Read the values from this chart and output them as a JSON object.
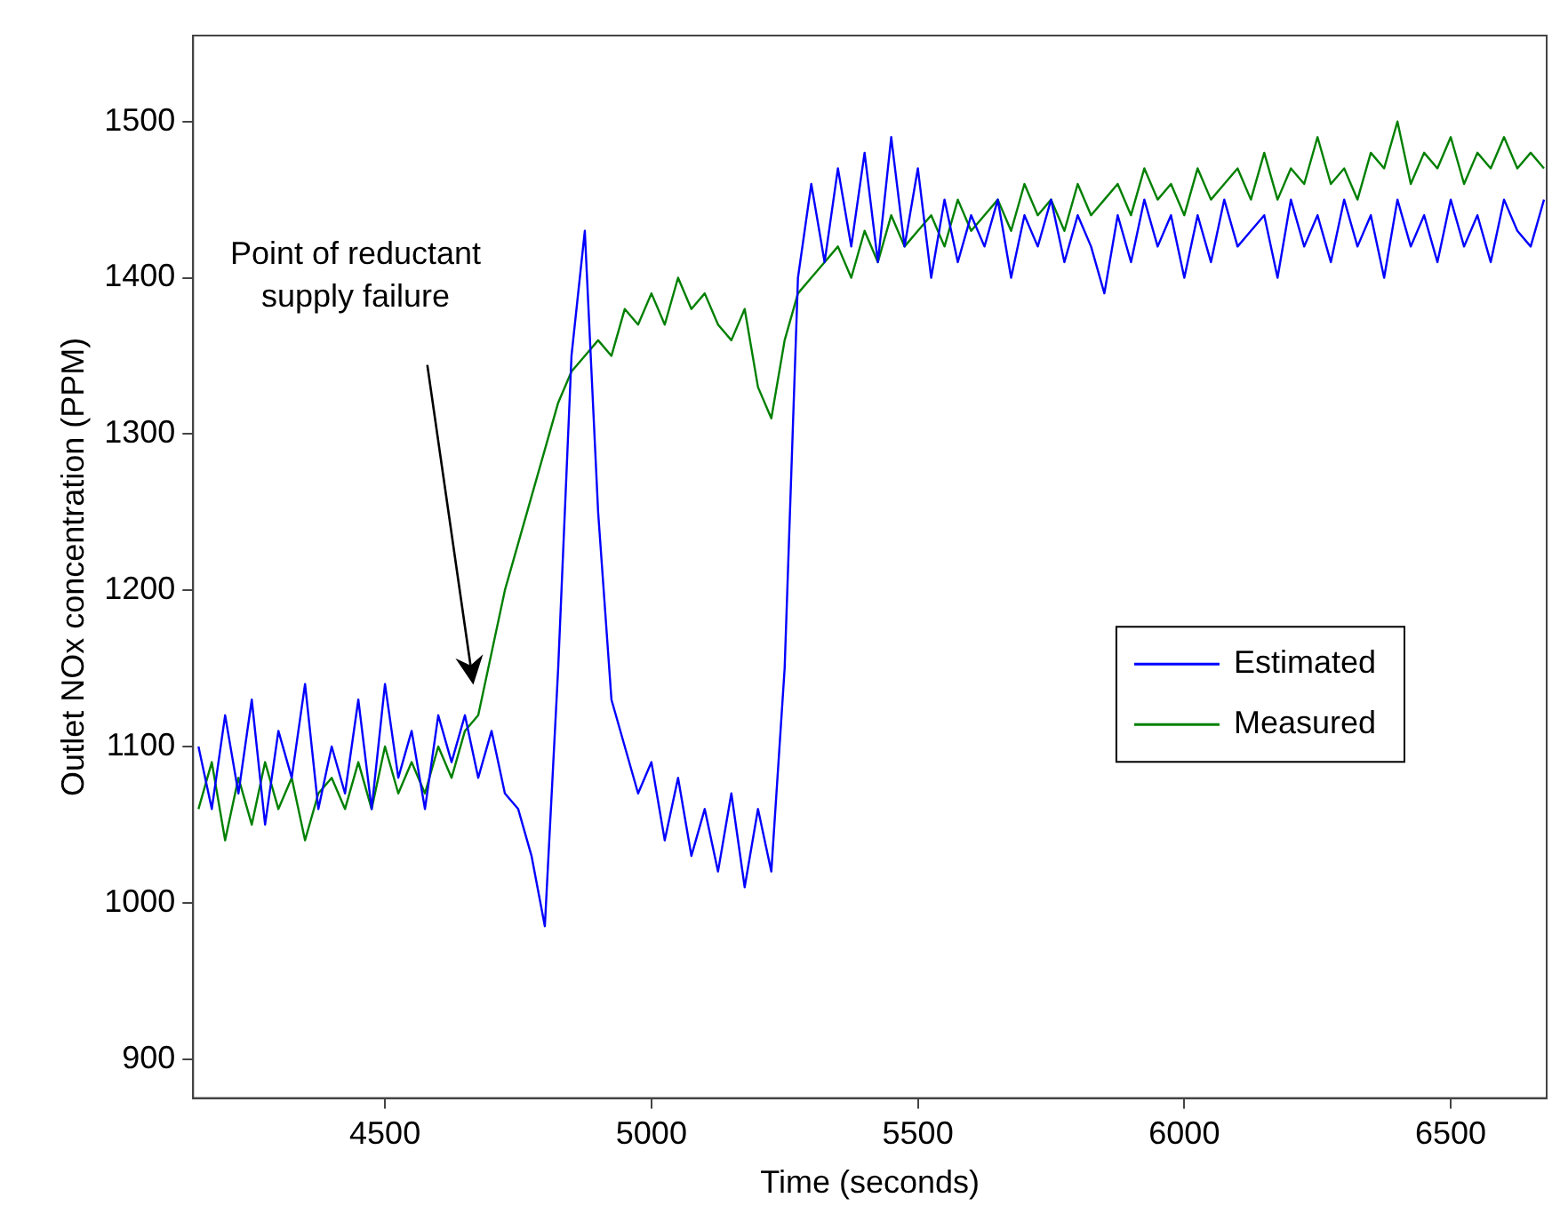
{
  "chart_data": {
    "type": "line",
    "xlabel": "Time (seconds)",
    "ylabel": "Outlet NOx concentration (PPM)",
    "x": [
      4150,
      4175,
      4200,
      4225,
      4250,
      4275,
      4300,
      4325,
      4350,
      4375,
      4400,
      4425,
      4450,
      4475,
      4500,
      4525,
      4550,
      4575,
      4600,
      4625,
      4650,
      4675,
      4700,
      4725,
      4750,
      4775,
      4800,
      4825,
      4850,
      4875,
      4900,
      4925,
      4950,
      4975,
      5000,
      5025,
      5050,
      5075,
      5100,
      5125,
      5150,
      5175,
      5200,
      5225,
      5250,
      5275,
      5300,
      5325,
      5350,
      5375,
      5400,
      5425,
      5450,
      5475,
      5500,
      5525,
      5550,
      5575,
      5600,
      5625,
      5650,
      5675,
      5700,
      5725,
      5750,
      5775,
      5800,
      5825,
      5850,
      5875,
      5900,
      5925,
      5950,
      5975,
      6000,
      6025,
      6050,
      6075,
      6100,
      6125,
      6150,
      6175,
      6200,
      6225,
      6250,
      6275,
      6300,
      6325,
      6350,
      6375,
      6400,
      6425,
      6450,
      6475,
      6500,
      6525,
      6550,
      6575,
      6600,
      6625,
      6650,
      6675
    ],
    "series": [
      {
        "name": "Estimated",
        "color": "#0000ff",
        "values": [
          1100,
          1060,
          1120,
          1070,
          1130,
          1050,
          1110,
          1080,
          1140,
          1060,
          1100,
          1070,
          1130,
          1060,
          1140,
          1080,
          1110,
          1060,
          1120,
          1090,
          1120,
          1080,
          1110,
          1070,
          1060,
          1030,
          985,
          1150,
          1350,
          1430,
          1250,
          1130,
          1100,
          1070,
          1090,
          1040,
          1080,
          1030,
          1060,
          1020,
          1070,
          1010,
          1060,
          1020,
          1150,
          1400,
          1460,
          1410,
          1470,
          1420,
          1480,
          1410,
          1490,
          1420,
          1470,
          1400,
          1450,
          1410,
          1440,
          1420,
          1450,
          1400,
          1440,
          1420,
          1450,
          1410,
          1440,
          1420,
          1390,
          1440,
          1410,
          1450,
          1420,
          1440,
          1400,
          1440,
          1410,
          1450,
          1420,
          1430,
          1440,
          1400,
          1450,
          1420,
          1440,
          1410,
          1450,
          1420,
          1440,
          1400,
          1450,
          1420,
          1440,
          1410,
          1450,
          1420,
          1440,
          1410,
          1450,
          1430,
          1420,
          1450
        ]
      },
      {
        "name": "Measured",
        "color": "#008000",
        "values": [
          1060,
          1090,
          1040,
          1080,
          1050,
          1090,
          1060,
          1080,
          1040,
          1070,
          1080,
          1060,
          1090,
          1060,
          1100,
          1070,
          1090,
          1070,
          1100,
          1080,
          1110,
          1120,
          1160,
          1200,
          1230,
          1260,
          1290,
          1320,
          1340,
          1350,
          1360,
          1350,
          1380,
          1370,
          1390,
          1370,
          1400,
          1380,
          1390,
          1370,
          1360,
          1380,
          1330,
          1310,
          1360,
          1390,
          1400,
          1410,
          1420,
          1400,
          1430,
          1410,
          1440,
          1420,
          1430,
          1440,
          1420,
          1450,
          1430,
          1440,
          1450,
          1430,
          1460,
          1440,
          1450,
          1430,
          1460,
          1440,
          1450,
          1460,
          1440,
          1470,
          1450,
          1460,
          1440,
          1470,
          1450,
          1460,
          1470,
          1450,
          1480,
          1450,
          1470,
          1460,
          1490,
          1460,
          1470,
          1450,
          1480,
          1470,
          1500,
          1460,
          1480,
          1470,
          1490,
          1460,
          1480,
          1470,
          1490,
          1470,
          1480,
          1470
        ]
      }
    ],
    "xlim": [
      4140,
      6680
    ],
    "xticks": [
      4500,
      5000,
      5500,
      6000,
      6500
    ],
    "ylim": [
      875,
      1555
    ],
    "yticks": [
      900,
      1000,
      1100,
      1200,
      1300,
      1400,
      1500
    ],
    "legend": "right",
    "marker": "none",
    "line_style": "solid",
    "annotations": [
      "Point of reductant\nsupply failure"
    ]
  }
}
